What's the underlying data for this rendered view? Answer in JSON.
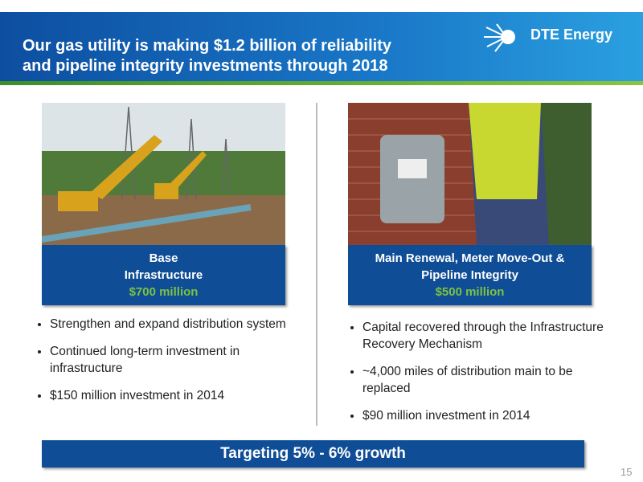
{
  "header": {
    "title_lines": [
      "Our gas utility is making $1.2 billion of reliability",
      "and pipeline integrity investments through 2018"
    ],
    "logo": "DTE Energy"
  },
  "panels": [
    {
      "label": "Base Infrastructure",
      "amount": "$700 million",
      "bullets": [
        "Strengthen and expand distribution system",
        "Continued long-term investment in infrastructure",
        "$150 million investment in 2014"
      ]
    },
    {
      "label": "Main Renewal, Meter Move-Out & Pipeline Integrity",
      "amount": "$500 million",
      "bullets": [
        "Capital recovered through the Infrastructure Recovery Mechanism",
        "~4,000 miles of distribution main to be replaced",
        "$90 million investment in 2014"
      ]
    }
  ],
  "footer": {
    "banner": "Targeting 5% - 6% growth",
    "page_number": "15"
  }
}
